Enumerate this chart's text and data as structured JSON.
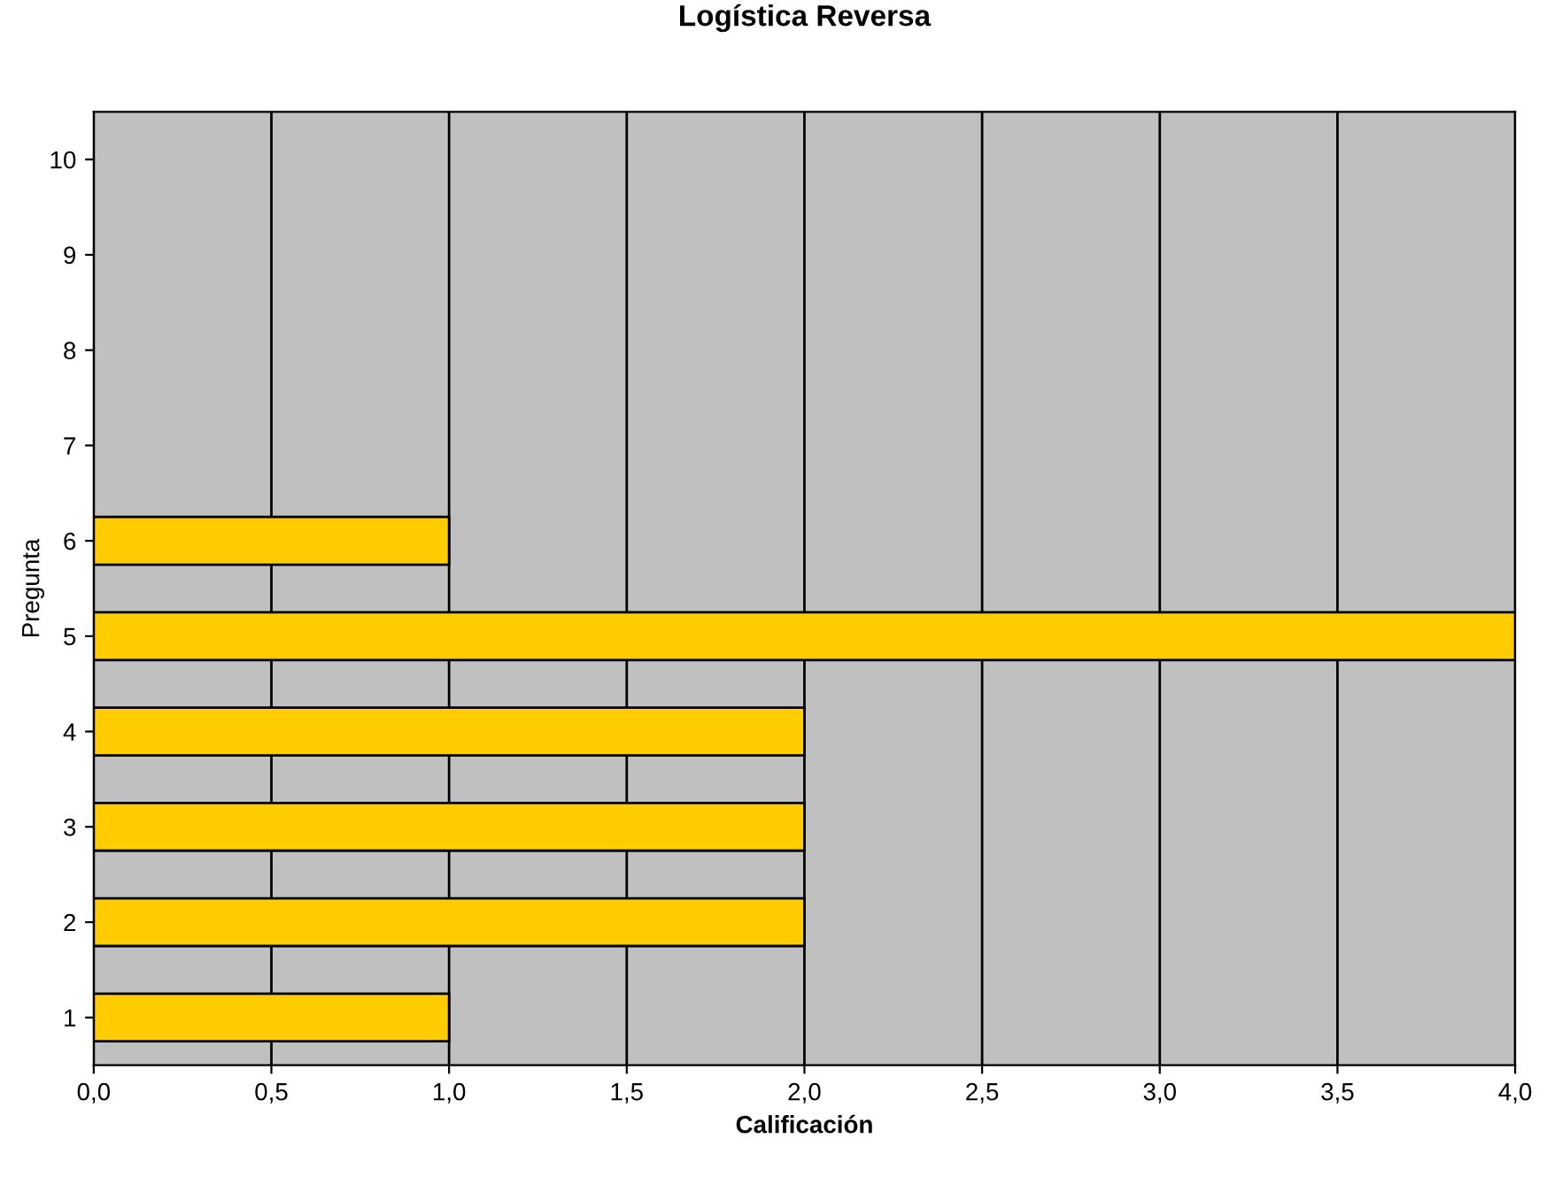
{
  "chart_data": {
    "type": "bar",
    "orientation": "horizontal",
    "title": "Logística Reversa",
    "xlabel": "Calificación",
    "ylabel": "Pregunta",
    "categories": [
      "10",
      "9",
      "8",
      "7",
      "6",
      "5",
      "4",
      "3",
      "2",
      "1"
    ],
    "values": [
      null,
      null,
      null,
      null,
      1,
      4,
      2,
      2,
      2,
      1
    ],
    "color": "#ffcc00",
    "xlim": [
      0,
      4
    ],
    "xticks": [
      {
        "value": 0,
        "label": "0,0"
      },
      {
        "value": 0.5,
        "label": "0,5"
      },
      {
        "value": 1,
        "label": "1,0"
      },
      {
        "value": 1.5,
        "label": "1,5"
      },
      {
        "value": 2,
        "label": "2,0"
      },
      {
        "value": 2.5,
        "label": "2,5"
      },
      {
        "value": 3,
        "label": "3,0"
      },
      {
        "value": 3.5,
        "label": "3,5"
      },
      {
        "value": 4,
        "label": "4,0"
      }
    ],
    "grid": "x",
    "legend": false
  }
}
